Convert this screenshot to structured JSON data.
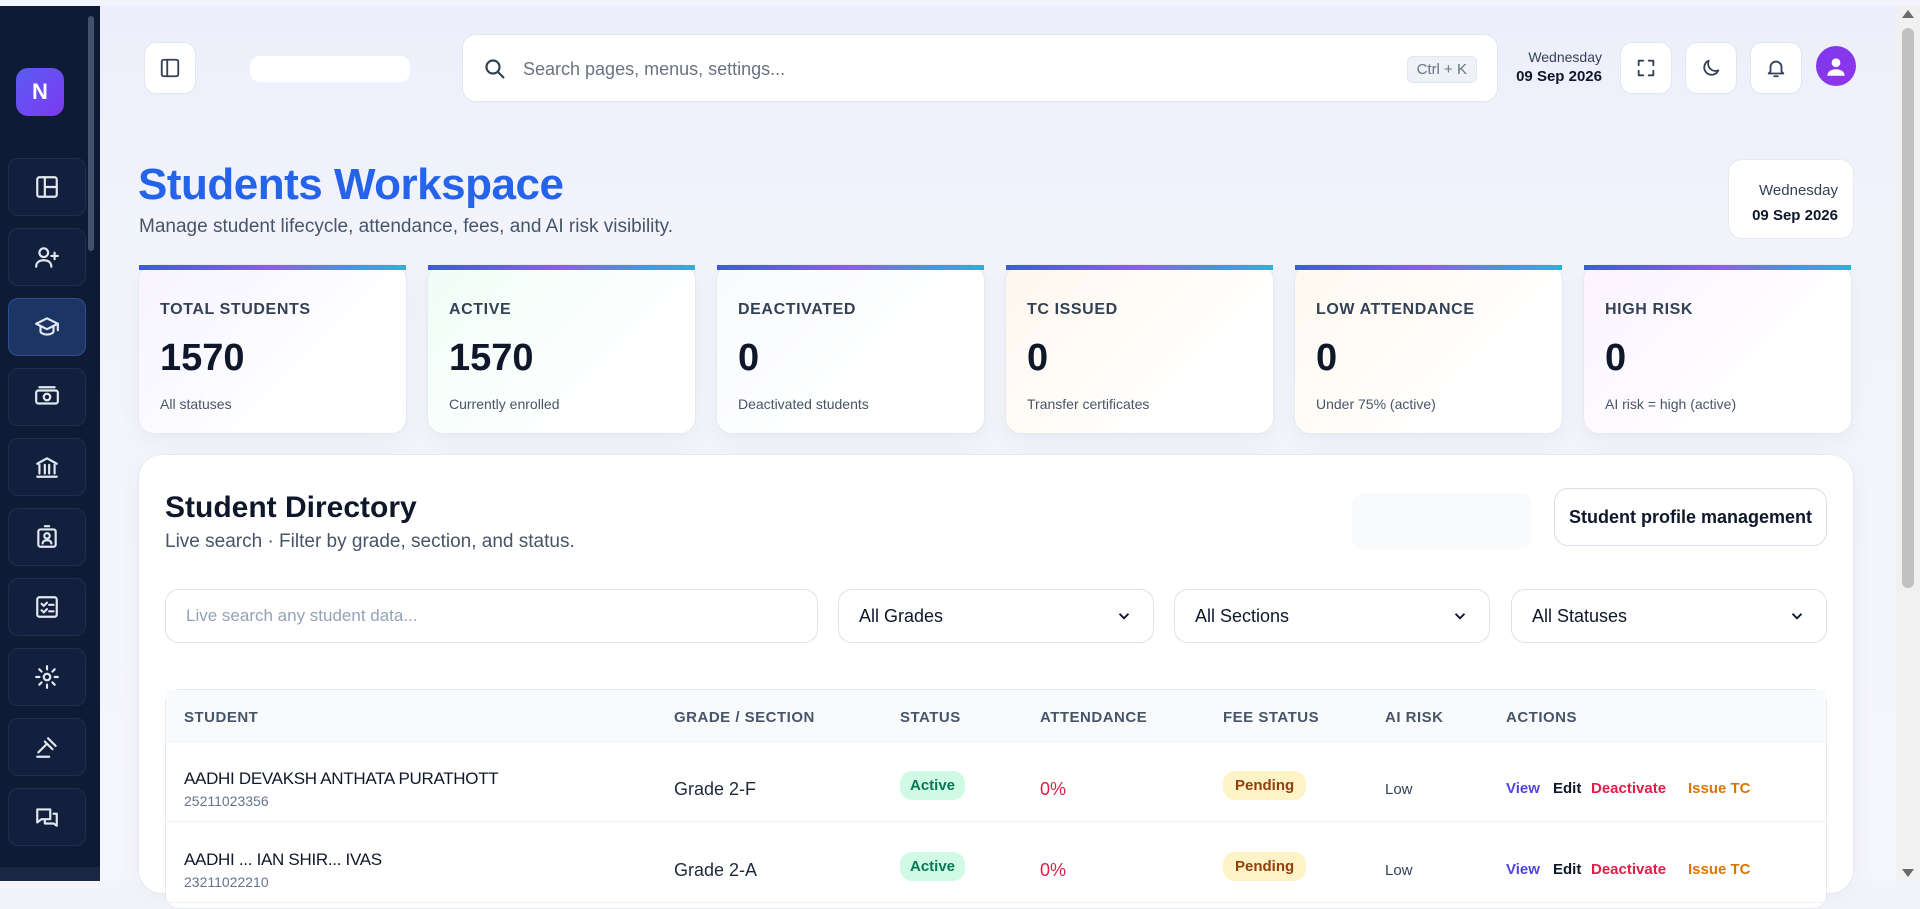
{
  "sidebar": {
    "logo": "N",
    "items": [
      {
        "icon": "layout-icon",
        "active": false
      },
      {
        "icon": "user-plus-icon",
        "active": false
      },
      {
        "icon": "graduation-cap-icon",
        "active": true
      },
      {
        "icon": "cash-icon",
        "active": false
      },
      {
        "icon": "bank-icon",
        "active": false
      },
      {
        "icon": "id-badge-icon",
        "active": false
      },
      {
        "icon": "checklist-icon",
        "active": false
      },
      {
        "icon": "gear-icon",
        "active": false
      },
      {
        "icon": "gavel-icon",
        "active": false
      },
      {
        "icon": "chat-icon",
        "active": false
      }
    ]
  },
  "topbar": {
    "school_name": "",
    "search_placeholder": "Search pages, menus, settings...",
    "shortcut": "Ctrl + K",
    "day": "Wednesday",
    "date": "09 Sep 2026"
  },
  "header": {
    "title": "Students Workspace",
    "subtitle": "Manage student lifecycle, attendance, fees, and AI risk visibility.",
    "day": "Wednesday",
    "date": "09 Sep 2026"
  },
  "stats": [
    {
      "label": "TOTAL STUDENTS",
      "value": "1570",
      "desc": "All statuses",
      "tint": "#f6f3ff"
    },
    {
      "label": "ACTIVE",
      "value": "1570",
      "desc": "Currently enrolled",
      "tint": "#effdf7"
    },
    {
      "label": "DEACTIVATED",
      "value": "0",
      "desc": "Deactivated students",
      "tint": "#f8fafc"
    },
    {
      "label": "TC ISSUED",
      "value": "0",
      "desc": "Transfer certificates",
      "tint": "#fff7ed"
    },
    {
      "label": "LOW ATTENDANCE",
      "value": "0",
      "desc": "Under 75% (active)",
      "tint": "#fff8ef"
    },
    {
      "label": "HIGH RISK",
      "value": "0",
      "desc": "AI risk = high (active)",
      "tint": "#fbf3ff"
    }
  ],
  "directory": {
    "title": "Student Directory",
    "subtitle": "Live search · Filter by grade, section, and status.",
    "profile_button": "Student profile management",
    "search_placeholder": "Live search any student data...",
    "filters": {
      "grades": "All Grades",
      "sections": "All Sections",
      "statuses": "All Statuses"
    },
    "columns": [
      "STUDENT",
      "GRADE / SECTION",
      "STATUS",
      "ATTENDANCE",
      "FEE STATUS",
      "AI RISK",
      "ACTIONS"
    ],
    "rows": [
      {
        "name": "AADHI DEVAKSH ANTHATA PURATHOTT",
        "id": "25211023356",
        "grade": "Grade 2-F",
        "status": "Active",
        "attendance": "0%",
        "fee": "Pending",
        "risk": "Low"
      },
      {
        "name": "AADHI ... IAN SHIR... IVAS",
        "id": "23211022210",
        "grade": "Grade 2-A",
        "status": "Active",
        "attendance": "0%",
        "fee": "Pending",
        "risk": "Low"
      }
    ],
    "actions": {
      "view": "View",
      "edit": "Edit",
      "deactivate": "Deactivate",
      "issue_tc": "Issue TC"
    }
  }
}
